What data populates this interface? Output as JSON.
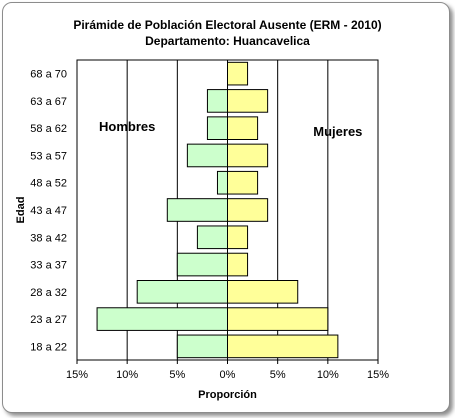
{
  "chart_data": {
    "type": "bar",
    "orientation": "horizontal",
    "layout": "population-pyramid",
    "title": "Pirámide de Población  Electoral Ausente (ERM - 2010)",
    "subtitle": "Departamento: Huancavelica",
    "xlabel": "Proporción",
    "ylabel": "Edad",
    "categories": [
      "18 a 22",
      "23 a 27",
      "28 a 32",
      "33 a 37",
      "38 a 42",
      "43 a 47",
      "48 a 52",
      "53 a 57",
      "58 a 62",
      "63 a 67",
      "68 a 70"
    ],
    "series": [
      {
        "name": "Hombres",
        "side": "left",
        "color": "#ccffcc",
        "values": [
          5.0,
          13.0,
          9.0,
          5.0,
          3.0,
          6.0,
          1.0,
          4.0,
          2.0,
          2.0,
          0.0
        ]
      },
      {
        "name": "Mujeres",
        "side": "right",
        "color": "#ffff99",
        "values": [
          11.0,
          10.0,
          7.0,
          2.0,
          2.0,
          4.0,
          3.0,
          4.0,
          3.0,
          4.0,
          2.0
        ]
      }
    ],
    "xticks": [
      "15%",
      "10%",
      "5%",
      "0%",
      "5%",
      "10%",
      "15%"
    ],
    "xlim": [
      -15,
      15
    ],
    "grid": true,
    "bar_edge_color": "#000000"
  }
}
